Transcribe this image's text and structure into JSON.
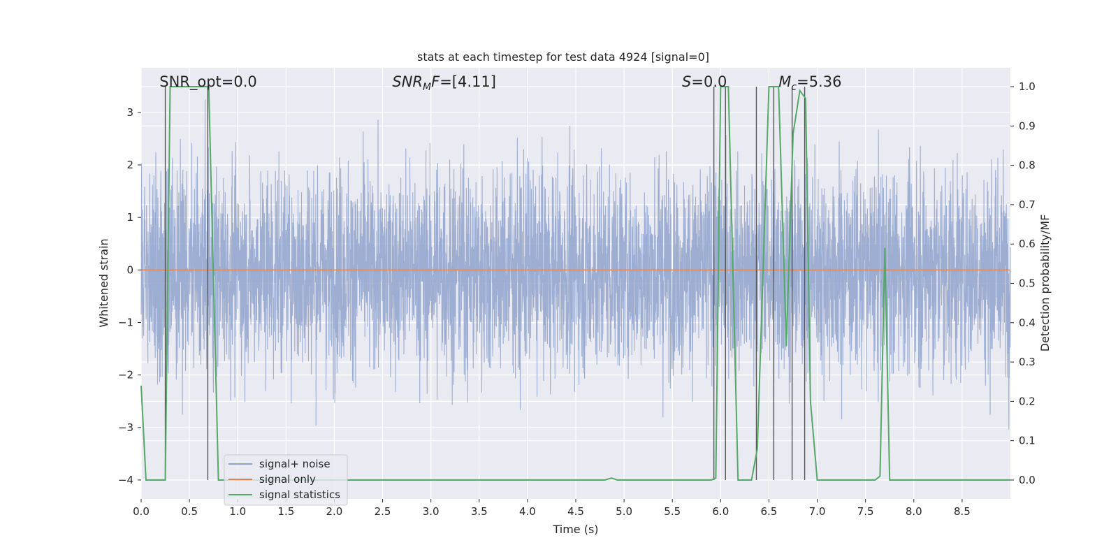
{
  "chart_data": {
    "type": "line",
    "title": "stats at each timestep for test data 4924 [signal=0]",
    "xlabel": "Time (s)",
    "ylabel": "Whitened strain",
    "y2label": "Detection probability/MF",
    "xlim": [
      0,
      9.0
    ],
    "ylim": [
      -4.36,
      3.85
    ],
    "y2lim": [
      -0.048,
      1.048
    ],
    "xticks": [
      "0.0",
      "0.5",
      "1.0",
      "1.5",
      "2.0",
      "2.5",
      "3.0",
      "3.5",
      "4.0",
      "4.5",
      "5.0",
      "5.5",
      "6.0",
      "6.5",
      "7.0",
      "7.5",
      "8.0",
      "8.5"
    ],
    "yticks": [
      "−4",
      "−3",
      "−2",
      "−1",
      "0",
      "1",
      "2",
      "3"
    ],
    "y2ticks": [
      "0.0",
      "0.1",
      "0.2",
      "0.3",
      "0.4",
      "0.5",
      "0.6",
      "0.7",
      "0.8",
      "0.9",
      "1.0"
    ],
    "grid": true,
    "legend_position": "lower-left",
    "annotations": [
      {
        "text": "SNR_opt=0.0",
        "x": 0.19
      },
      {
        "text": "SNR_MF=[4.11]",
        "x": 2.6
      },
      {
        "text": "S=0.0",
        "x": 5.6
      },
      {
        "text": "M_c=5.36",
        "x": 6.6
      }
    ],
    "series": [
      {
        "name": "signal+ noise",
        "axis": "left",
        "color": "#8fa3cc",
        "noise_envelope": {
          "mean": 0.0,
          "std": 0.95,
          "min": -3.5,
          "max": 3.5
        }
      },
      {
        "name": "signal only",
        "axis": "left",
        "color": "#dd8452",
        "x": [
          0,
          9.0
        ],
        "y": [
          0,
          0
        ]
      },
      {
        "name": "signal statistics",
        "axis": "right",
        "color": "#55a868",
        "x": [
          0.0,
          0.05,
          0.25,
          0.3,
          0.7,
          0.8,
          0.82,
          4.8,
          4.87,
          4.93,
          5.9,
          5.95,
          6.0,
          6.08,
          6.18,
          6.2,
          6.32,
          6.38,
          6.5,
          6.6,
          6.68,
          6.75,
          6.82,
          6.88,
          6.93,
          7.0,
          7.6,
          7.65,
          7.7,
          7.75,
          9.0
        ],
        "y": [
          0.24,
          0.0,
          0.0,
          1.0,
          1.0,
          0.0,
          0.0,
          0.0,
          0.005,
          0.0,
          0.0,
          0.005,
          1.0,
          1.0,
          0.0,
          0.0,
          0.0,
          0.08,
          1.0,
          1.0,
          0.34,
          0.88,
          0.99,
          0.97,
          0.2,
          0.0,
          0.0,
          0.01,
          0.59,
          0.0,
          0.0
        ]
      },
      {
        "name": "",
        "axis": "right",
        "kind": "vlines",
        "color": "#555555",
        "x": [
          0.25,
          0.69,
          5.93,
          6.05,
          6.37,
          6.55,
          6.74,
          6.87
        ],
        "ymin": 0.0,
        "ymax": 1.0
      }
    ]
  }
}
